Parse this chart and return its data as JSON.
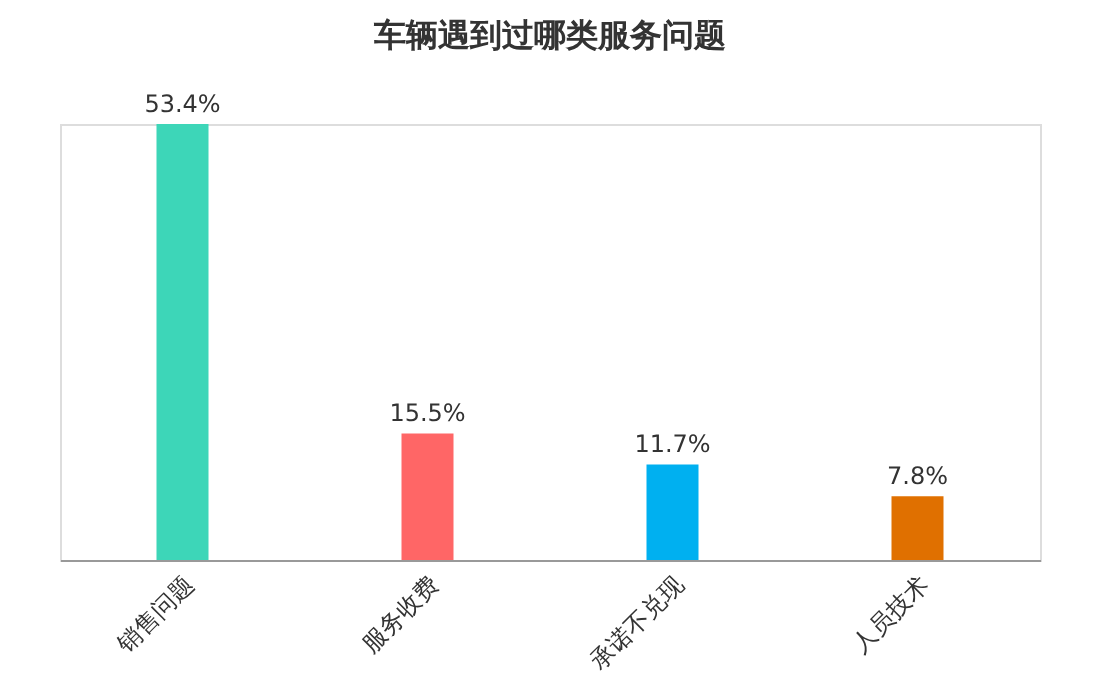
{
  "chart_data": {
    "type": "bar",
    "title": "车辆遇到过哪类服务问题",
    "categories": [
      "销售问题",
      "服务收费",
      "承诺不兑现",
      "人员技术"
    ],
    "values": [
      53.4,
      15.5,
      11.7,
      7.8
    ],
    "colors": [
      "#3dd6b8",
      "#ff6666",
      "#00b0f0",
      "#e07000"
    ],
    "value_labels": [
      "53.4%",
      "15.5%",
      "11.7%",
      "7.8%"
    ],
    "grid": false
  }
}
